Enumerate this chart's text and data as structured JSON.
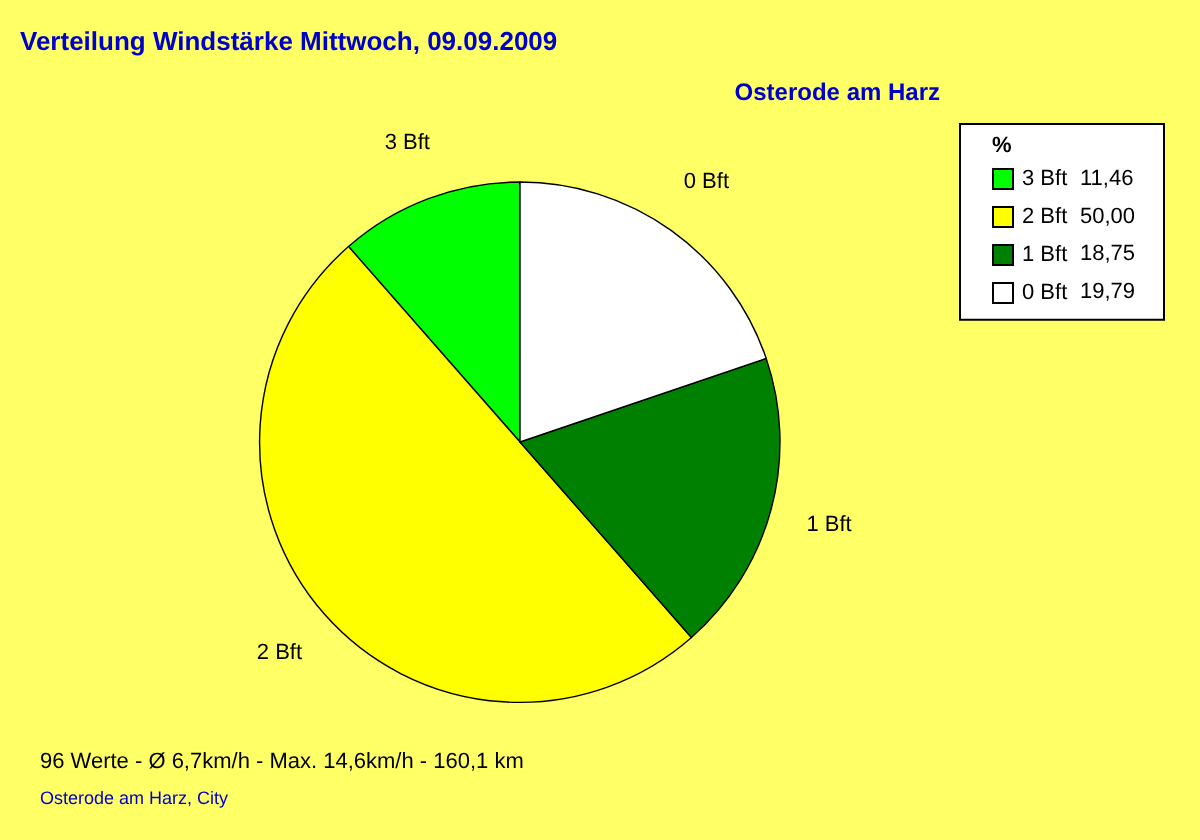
{
  "chart_data": {
    "type": "pie",
    "title": "Verteilung Windstärke  Mittwoch, 09.09.2009",
    "subtitle": "Osterode am Harz",
    "categories": [
      "3 Bft",
      "2 Bft",
      "1 Bft",
      "0 Bft"
    ],
    "values": [
      11.46,
      50.0,
      18.75,
      19.79
    ],
    "value_labels": [
      "11,46",
      "50,00",
      "18,75",
      "19,79"
    ],
    "colors": [
      "#00ff00",
      "#ffff00",
      "#008000",
      "#ffffff"
    ],
    "legend_title": "%",
    "legend": "top right",
    "annotations": [
      "96 Werte   -   Ø 6,7km/h  -  Max. 14,6km/h   -   160,1 km",
      "Osterode am Harz, City"
    ]
  }
}
